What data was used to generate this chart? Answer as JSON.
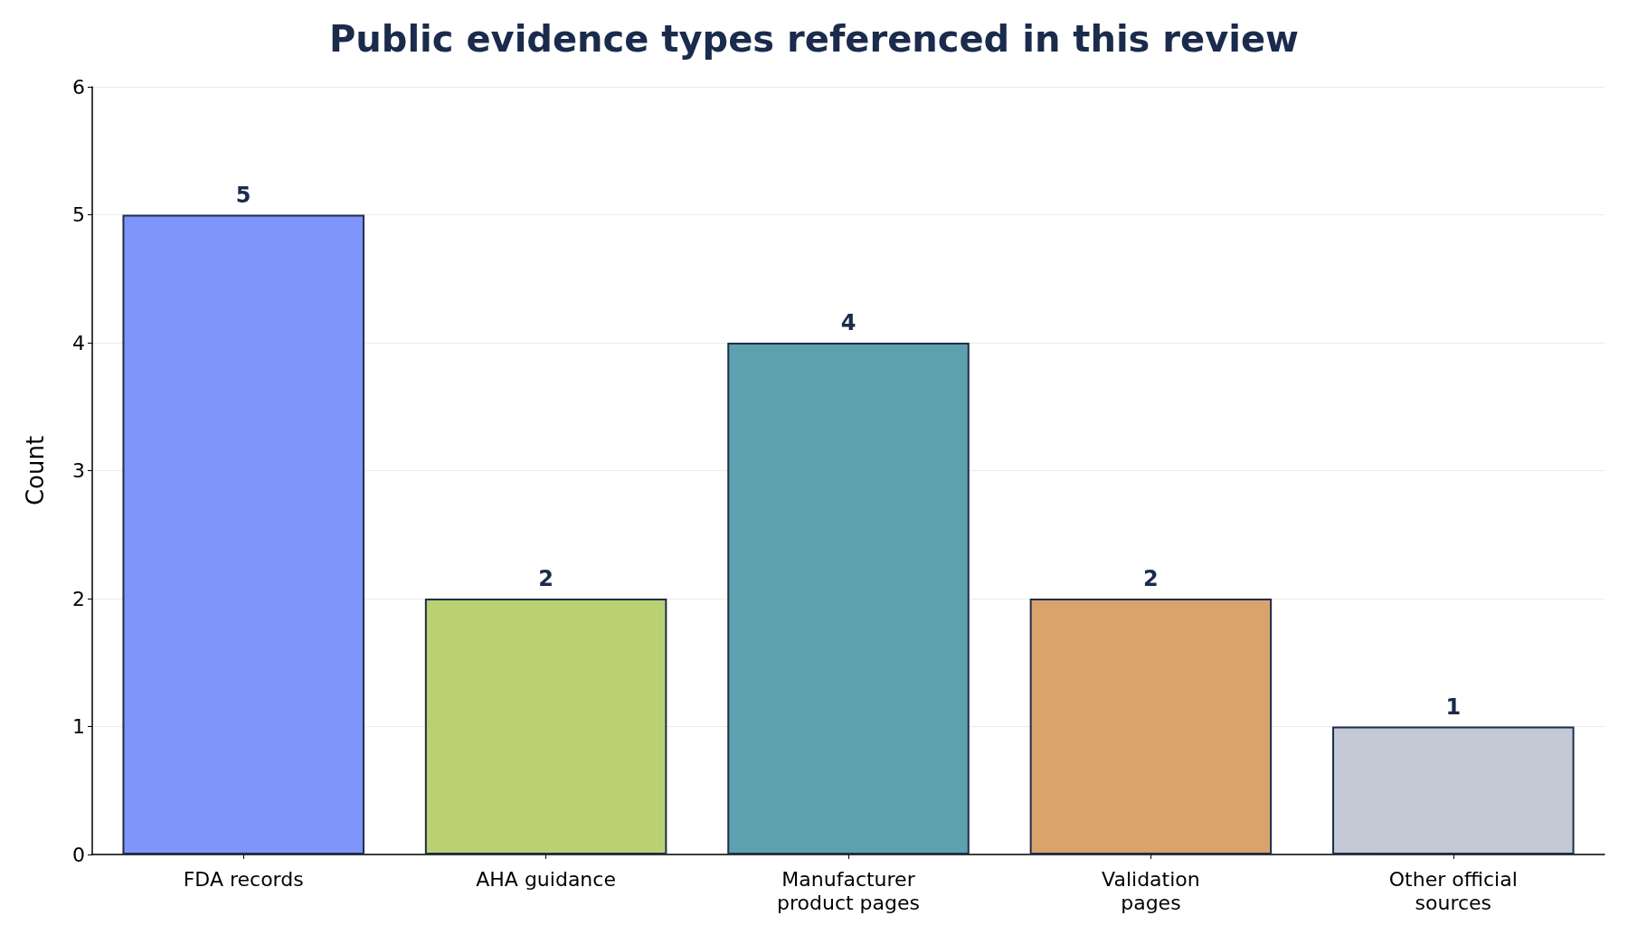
{
  "chart_data": {
    "type": "bar",
    "title": "Public evidence types referenced in this review",
    "ylabel": "Count",
    "categories": [
      "FDA records",
      "AHA guidance",
      "Manufacturer\nproduct pages",
      "Validation\npages",
      "Other official\nsources"
    ],
    "values": [
      5,
      2,
      4,
      2,
      1
    ],
    "colors": [
      "#7f95fa",
      "#b9d173",
      "#5ea1ae",
      "#d9a36e",
      "#c3c9d5"
    ],
    "ylim": [
      0,
      6
    ],
    "yticks": [
      0,
      1,
      2,
      3,
      4,
      5,
      6
    ],
    "grid": "y",
    "data_labels": true
  }
}
